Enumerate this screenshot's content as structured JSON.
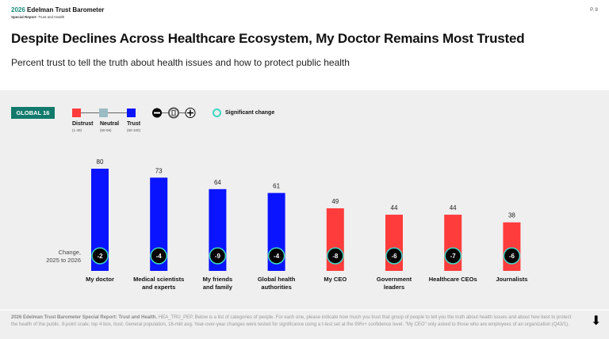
{
  "header": {
    "brand_year": "2026",
    "brand_name": "Edelman Trust Barometer",
    "sub_bold": "Special Report:",
    "sub_rest": "Trust and Health",
    "page": "P. 8"
  },
  "title": "Despite Declines Across Healthcare Ecosystem, My Doctor Remains Most Trusted",
  "subtitle": "Percent trust to tell the truth about health issues and how to protect public health",
  "badge": "GLOBAL 16",
  "legend": {
    "distrust": "Distrust",
    "distrust_range": "(1-49)",
    "neutral": "Neutral",
    "neutral_range": "(50-59)",
    "trust": "Trust",
    "trust_range": "(60-100)",
    "significant": "Significant change",
    "colors": {
      "distrust": "#ff3c3c",
      "neutral": "#9bbcc4",
      "trust": "#0a14ff",
      "significant": "#3dd6c4"
    }
  },
  "change_label": "Change,\n2025 to 2026",
  "chart_data": {
    "type": "bar",
    "categories": [
      "My doctor",
      "Medical scientists and experts",
      "My friends and family",
      "Global health authorities",
      "My CEO",
      "Government leaders",
      "Healthcare CEOs",
      "Journalists"
    ],
    "values": [
      80,
      73,
      64,
      61,
      49,
      44,
      44,
      38
    ],
    "changes": [
      -2,
      -4,
      -9,
      -4,
      -8,
      -6,
      -7,
      -6
    ],
    "significant": [
      true,
      true,
      true,
      true,
      true,
      true,
      true,
      true
    ],
    "ylim": [
      0,
      100
    ]
  },
  "footer": {
    "bold": "2026 Edelman Trust Barometer Special Report: Trust and Health.",
    "text": " HEA_TRU_PEP. Below is a list of categories of people. For each one, please indicate how much you trust that group of people to tell you the truth about health issues and about how best to protect the health of the public. 9-point scale; top 4 box, trust. General population, 16-mkt avg. Year-over-year changes were tested for significance using a t-test set at the 99%+ confidence level. \"My CEO\" only asked to those who are employees of an organization (Q43/1)."
  }
}
